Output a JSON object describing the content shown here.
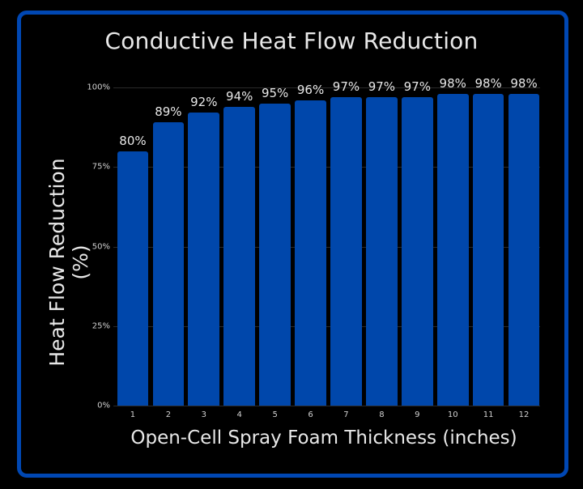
{
  "chart_data": {
    "type": "bar",
    "title": "Conductive Heat Flow Reduction",
    "xlabel": "Open-Cell Spray Foam Thickness (inches)",
    "ylabel": "Heat Flow Reduction (%)",
    "categories": [
      "1",
      "2",
      "3",
      "4",
      "5",
      "6",
      "7",
      "8",
      "9",
      "10",
      "11",
      "12"
    ],
    "values": [
      80,
      89,
      92,
      94,
      95,
      96,
      97,
      97,
      97,
      98,
      98,
      98
    ],
    "value_labels": [
      "80%",
      "89%",
      "92%",
      "94%",
      "95%",
      "96%",
      "97%",
      "97%",
      "97%",
      "98%",
      "98%",
      "98%"
    ],
    "ylim": [
      0,
      100
    ],
    "yticks": [
      0,
      25,
      50,
      75,
      100
    ],
    "ytick_labels": [
      "0%",
      "25%",
      "50%",
      "75%",
      "100%"
    ],
    "grid": true,
    "legend": null,
    "colors": {
      "bar": "#0047ab",
      "frame": "#0047b3",
      "background": "#000000",
      "text": "#e8e8e8"
    }
  }
}
